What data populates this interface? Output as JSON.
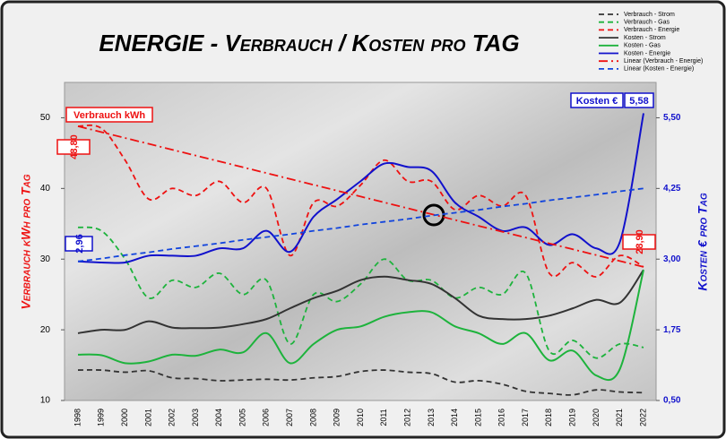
{
  "chart_data": {
    "type": "line",
    "title": "ENERGIE - Verbrauch / Kosten pro TAG",
    "y_label": "Verbrauch kWh pro Tag",
    "y2_label": "Kosten € pro Tag",
    "categories": [
      "1998",
      "1999",
      "2000",
      "2001",
      "2002",
      "2003",
      "2004",
      "2005",
      "2006",
      "2007",
      "2008",
      "2009",
      "2010",
      "2011",
      "2012",
      "2013",
      "2014",
      "2015",
      "2016",
      "2017",
      "2018",
      "2019",
      "2020",
      "2021",
      "2022"
    ],
    "ylim": [
      10,
      55
    ],
    "yticks": [
      10,
      20,
      30,
      40,
      50
    ],
    "y2lim": [
      0.5,
      6.125
    ],
    "y2ticks": [
      {
        "value": 0.5,
        "label": "0,50"
      },
      {
        "value": 1.75,
        "label": "1,75"
      },
      {
        "value": 3.0,
        "label": "3,00"
      },
      {
        "value": 4.25,
        "label": "4,25"
      },
      {
        "value": 5.5,
        "label": "5,50"
      }
    ],
    "legend": "top-right",
    "series": [
      {
        "name": "Verbrauch - Strom",
        "color": "#333333",
        "style": "dashed",
        "values": [
          14.3,
          14.3,
          14,
          14.2,
          13.2,
          13.1,
          12.8,
          12.9,
          13,
          12.9,
          13.2,
          13.4,
          14.1,
          14.3,
          14,
          13.8,
          12.6,
          12.8,
          12.3,
          11.3,
          11,
          10.8,
          11.5,
          11.2,
          11.1
        ]
      },
      {
        "name": "Verbrauch - Gas",
        "color": "#1db33c",
        "style": "dashed",
        "values": [
          34.5,
          34,
          30,
          24.5,
          27,
          26,
          28,
          25,
          27,
          18,
          25,
          24,
          26.5,
          30,
          27,
          27,
          24.5,
          26,
          25,
          28,
          17,
          18.5,
          16,
          18,
          17.5
        ]
      },
      {
        "name": "Verbrauch - Energie",
        "color": "#ee1111",
        "style": "dashed",
        "values": [
          48.8,
          48.5,
          44,
          38.5,
          40,
          39,
          41,
          38,
          40,
          30.5,
          38,
          37.5,
          40.5,
          44,
          41,
          41,
          37,
          39,
          37.5,
          39,
          28,
          29.5,
          27.5,
          30.5,
          28.9
        ]
      },
      {
        "name": "Kosten - Strom",
        "color": "#333333",
        "style": "solid",
        "axis": "y2",
        "values": [
          1.69,
          1.75,
          1.75,
          1.9,
          1.79,
          1.78,
          1.79,
          1.85,
          1.94,
          2.13,
          2.31,
          2.44,
          2.63,
          2.69,
          2.63,
          2.56,
          2.31,
          2.0,
          1.94,
          1.94,
          2.0,
          2.13,
          2.28,
          2.23,
          2.81
        ]
      },
      {
        "name": "Kosten - Gas",
        "color": "#1db33c",
        "style": "solid",
        "axis": "y2",
        "values": [
          1.31,
          1.3,
          1.16,
          1.19,
          1.31,
          1.29,
          1.4,
          1.35,
          1.69,
          1.16,
          1.5,
          1.75,
          1.81,
          1.98,
          2.06,
          2.06,
          1.81,
          1.69,
          1.5,
          1.69,
          1.21,
          1.38,
          0.94,
          1.06,
          2.81
        ]
      },
      {
        "name": "Kosten - Energie",
        "color": "#1111cc",
        "style": "solid",
        "axis": "y2",
        "values": [
          2.96,
          2.94,
          2.94,
          3.06,
          3.06,
          3.06,
          3.19,
          3.19,
          3.5,
          3.13,
          3.75,
          4.06,
          4.38,
          4.69,
          4.63,
          4.56,
          4.0,
          3.75,
          3.5,
          3.56,
          3.25,
          3.44,
          3.19,
          3.31,
          5.58
        ]
      },
      {
        "name": "Linear (Verbrauch - Energie)",
        "color": "#ee1111",
        "style": "dashdot",
        "values": [
          48.8,
          47.97,
          47.14,
          46.31,
          45.48,
          44.65,
          43.83,
          43.0,
          42.17,
          41.34,
          40.51,
          39.68,
          38.85,
          38.02,
          37.19,
          36.36,
          35.54,
          34.71,
          33.88,
          33.05,
          32.22,
          31.39,
          30.56,
          29.73,
          28.9
        ]
      },
      {
        "name": "Linear (Kosten - Energie)",
        "color": "#1144dd",
        "style": "dashed",
        "axis": "y2",
        "values": [
          2.96,
          3.01,
          3.07,
          3.12,
          3.18,
          3.23,
          3.28,
          3.34,
          3.39,
          3.44,
          3.5,
          3.55,
          3.61,
          3.66,
          3.71,
          3.77,
          3.82,
          3.87,
          3.93,
          3.98,
          4.04,
          4.09,
          4.14,
          4.2,
          4.25
        ]
      }
    ],
    "annotations": [
      {
        "text": "Verbrauch kWh",
        "color": "#ee1111"
      },
      {
        "text": "48,80",
        "color": "#ee1111"
      },
      {
        "text": "2,96",
        "color": "#1111cc"
      },
      {
        "text": "28,90",
        "color": "#ee1111"
      },
      {
        "text": "Kosten €",
        "color": "#1111cc"
      },
      {
        "text": "5,58",
        "color": "#1111cc"
      }
    ]
  }
}
